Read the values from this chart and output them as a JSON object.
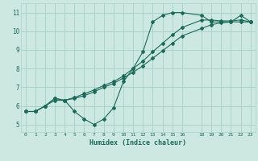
{
  "title": "",
  "xlabel": "Humidex (Indice chaleur)",
  "ylabel": "",
  "bg_color": "#cce8e0",
  "grid_color": "#aad4c8",
  "line_color": "#1a6b5a",
  "xlim": [
    -0.5,
    23.5
  ],
  "ylim": [
    4.6,
    11.5
  ],
  "xticks": [
    0,
    1,
    2,
    3,
    4,
    5,
    6,
    7,
    8,
    9,
    10,
    11,
    12,
    13,
    14,
    15,
    16,
    18,
    19,
    20,
    21,
    22,
    23
  ],
  "yticks": [
    5,
    6,
    7,
    8,
    9,
    10,
    11
  ],
  "line1_x": [
    0,
    1,
    2,
    3,
    4,
    5,
    6,
    7,
    8,
    9,
    10,
    11,
    12,
    13,
    14,
    15,
    16,
    18,
    19,
    20,
    21,
    22,
    23
  ],
  "line1_y": [
    5.7,
    5.7,
    6.0,
    6.3,
    6.3,
    5.7,
    5.3,
    5.0,
    5.3,
    5.9,
    7.3,
    8.0,
    8.9,
    10.5,
    10.85,
    11.0,
    11.0,
    10.85,
    10.5,
    10.5,
    10.5,
    10.85,
    10.5
  ],
  "line2_x": [
    0,
    1,
    2,
    3,
    4,
    5,
    6,
    7,
    8,
    9,
    10,
    11,
    12,
    13,
    14,
    15,
    16,
    18,
    19,
    20,
    21,
    22,
    23
  ],
  "line2_y": [
    5.7,
    5.7,
    6.0,
    6.4,
    6.3,
    6.4,
    6.55,
    6.75,
    7.0,
    7.2,
    7.5,
    7.8,
    8.15,
    8.55,
    8.95,
    9.35,
    9.75,
    10.15,
    10.35,
    10.45,
    10.5,
    10.5,
    10.5
  ],
  "line3_x": [
    0,
    1,
    2,
    3,
    4,
    5,
    6,
    7,
    8,
    9,
    10,
    11,
    12,
    13,
    14,
    15,
    16,
    18,
    19,
    20,
    21,
    22,
    23
  ],
  "line3_y": [
    5.7,
    5.7,
    6.0,
    6.4,
    6.3,
    6.45,
    6.65,
    6.85,
    7.1,
    7.3,
    7.6,
    8.0,
    8.4,
    8.9,
    9.35,
    9.8,
    10.2,
    10.6,
    10.6,
    10.55,
    10.55,
    10.6,
    10.5
  ]
}
